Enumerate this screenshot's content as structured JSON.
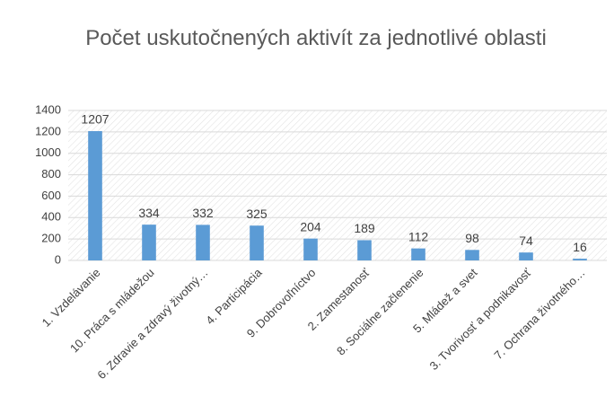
{
  "chart_data": {
    "type": "bar",
    "title": "Počet uskutočnených aktivít za jednotlivé oblasti",
    "categories": [
      "1. Vzdelávanie",
      "10. Práca s mládežou",
      "6. Zdravie a zdravý životný…",
      "4. Participácia",
      "9. Dobrovoľníctvo",
      "2. Zamestanosť",
      "8. Sociálne začlenenie",
      "5. Mládež a svet",
      "3. Tvorivosť a podnikavosť",
      "7. Ochrana životného…"
    ],
    "values": [
      1207,
      334,
      332,
      325,
      204,
      189,
      112,
      98,
      74,
      16
    ],
    "color": "#5b9bd5",
    "ylim": [
      0,
      1400
    ],
    "yticks": [
      0,
      200,
      400,
      600,
      800,
      1000,
      1200,
      1400
    ],
    "grid": true
  }
}
